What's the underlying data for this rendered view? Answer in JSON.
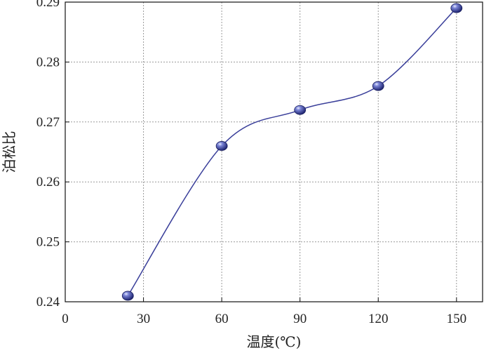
{
  "chart_data": {
    "type": "line",
    "xlabel": "温度(℃)",
    "ylabel": "泊松比",
    "xlim": [
      0,
      160
    ],
    "ylim": [
      0.24,
      0.29
    ],
    "x_ticks": [
      0,
      30,
      60,
      90,
      120,
      150
    ],
    "y_ticks": [
      0.24,
      0.25,
      0.26,
      0.27,
      0.28,
      0.29
    ],
    "x_tick_labels": [
      "0",
      "30",
      "60",
      "90",
      "120",
      "150"
    ],
    "y_tick_labels": [
      "0.24",
      "0.25",
      "0.26",
      "0.27",
      "0.28",
      "0.29"
    ],
    "grid": true,
    "legend": "none",
    "smooth": true,
    "series": [
      {
        "color": "#3a3f9a",
        "x": [
          24,
          60,
          90,
          120,
          150
        ],
        "y": [
          0.241,
          0.266,
          0.272,
          0.276,
          0.289
        ]
      }
    ]
  }
}
